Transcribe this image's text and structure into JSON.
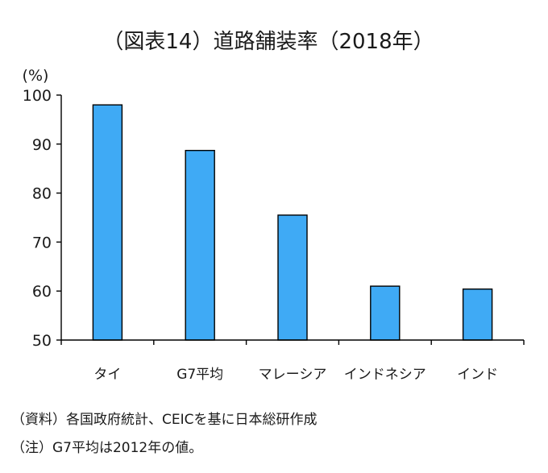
{
  "chart_data": {
    "type": "bar",
    "title": "（図表14）道路舗装率（2018年）",
    "ylabel": "(%)",
    "xlabel": "",
    "ylim": [
      50,
      100
    ],
    "yticks": [
      50,
      60,
      70,
      80,
      90,
      100
    ],
    "categories": [
      "タイ",
      "G7平均",
      "マレーシア",
      "インドネシア",
      "インド"
    ],
    "values": [
      98.0,
      88.7,
      75.5,
      61.0,
      60.4
    ],
    "bar_color": "#3FAAF5",
    "grid": false,
    "legend": "none"
  },
  "notes": {
    "source": "（資料）各国政府統計、CEICを基に日本総研作成",
    "note": "（注）G7平均は2012年の値。"
  }
}
